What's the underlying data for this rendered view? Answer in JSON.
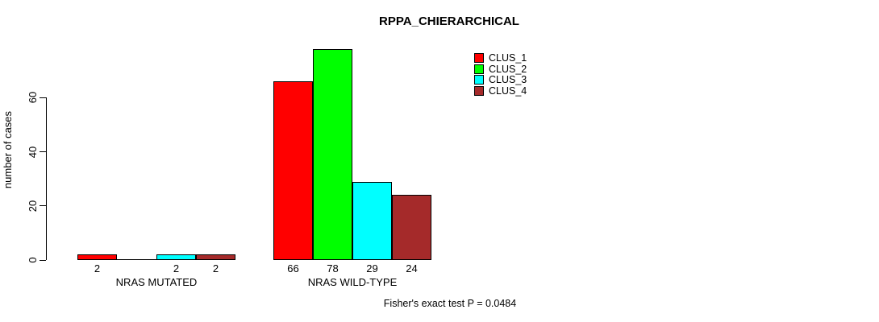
{
  "chart_data": {
    "type": "bar",
    "title": "RPPA_CHIERARCHICAL",
    "ylabel": "number of cases",
    "xlabel": "",
    "yticks": [
      0,
      20,
      40,
      60
    ],
    "ylim": [
      0,
      78
    ],
    "grid": false,
    "legend_position": "top-right",
    "categories": [
      "NRAS MUTATED",
      "NRAS WILD-TYPE"
    ],
    "series": [
      {
        "name": "CLUS_1",
        "color": "#ff0000",
        "values": [
          2,
          66
        ]
      },
      {
        "name": "CLUS_2",
        "color": "#00ff00",
        "values": [
          0,
          78
        ]
      },
      {
        "name": "CLUS_3",
        "color": "#00ffff",
        "values": [
          2,
          29
        ]
      },
      {
        "name": "CLUS_4",
        "color": "#a52a2a",
        "values": [
          2,
          24
        ]
      }
    ],
    "bar_value_labels": {
      "show": true,
      "hide_zero": true
    },
    "annotation": "Fisher's exact test P = 0.0484"
  }
}
